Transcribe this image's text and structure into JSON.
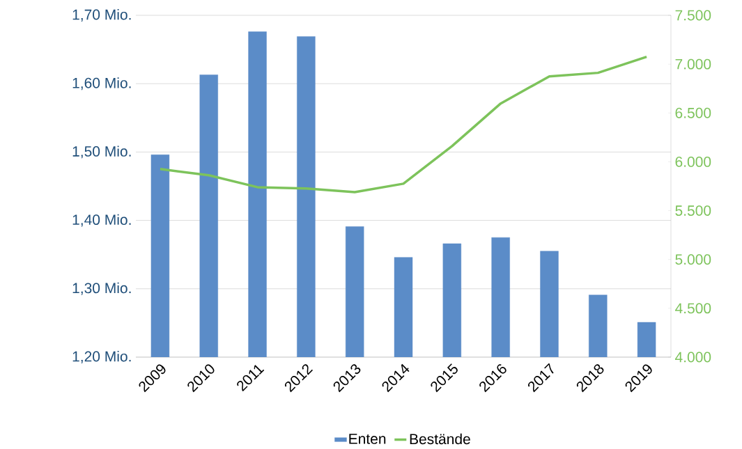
{
  "chart_data": {
    "type": "bar",
    "categories": [
      "2009",
      "2010",
      "2011",
      "2012",
      "2013",
      "2014",
      "2015",
      "2016",
      "2017",
      "2018",
      "2019"
    ],
    "series": [
      {
        "name": "Enten",
        "color": "#5b8cc8",
        "values": [
          1.496,
          1.613,
          1.676,
          1.669,
          1.391,
          1.346,
          1.366,
          1.375,
          1.355,
          1.291,
          1.251
        ]
      },
      {
        "name": "Bestände",
        "type": "line",
        "axis": "y2",
        "color": "#7dc35b",
        "values": [
          5926,
          5862,
          5740,
          5726,
          5690,
          5776,
          6161,
          6597,
          6875,
          6911,
          7075
        ]
      }
    ],
    "ylim": [
      1.2,
      1.7
    ],
    "yticks": [
      {
        "value": 1.2,
        "label": "1,20 Mio."
      },
      {
        "value": 1.3,
        "label": "1,30 Mio."
      },
      {
        "value": 1.4,
        "label": "1,40 Mio."
      },
      {
        "value": 1.5,
        "label": "1,50 Mio."
      },
      {
        "value": 1.6,
        "label": "1,60 Mio."
      },
      {
        "value": 1.7,
        "label": "1,70 Mio."
      }
    ],
    "y2lim": [
      4000,
      7500
    ],
    "y2ticks": [
      {
        "value": 4000,
        "label": "4.000"
      },
      {
        "value": 4500,
        "label": "4.500"
      },
      {
        "value": 5000,
        "label": "5.000"
      },
      {
        "value": 5500,
        "label": "5.500"
      },
      {
        "value": 6000,
        "label": "6.000"
      },
      {
        "value": 6500,
        "label": "6.500"
      },
      {
        "value": 7000,
        "label": "7.000"
      },
      {
        "value": 7500,
        "label": "7.500"
      }
    ],
    "grid": "y",
    "legend": "bottom"
  }
}
